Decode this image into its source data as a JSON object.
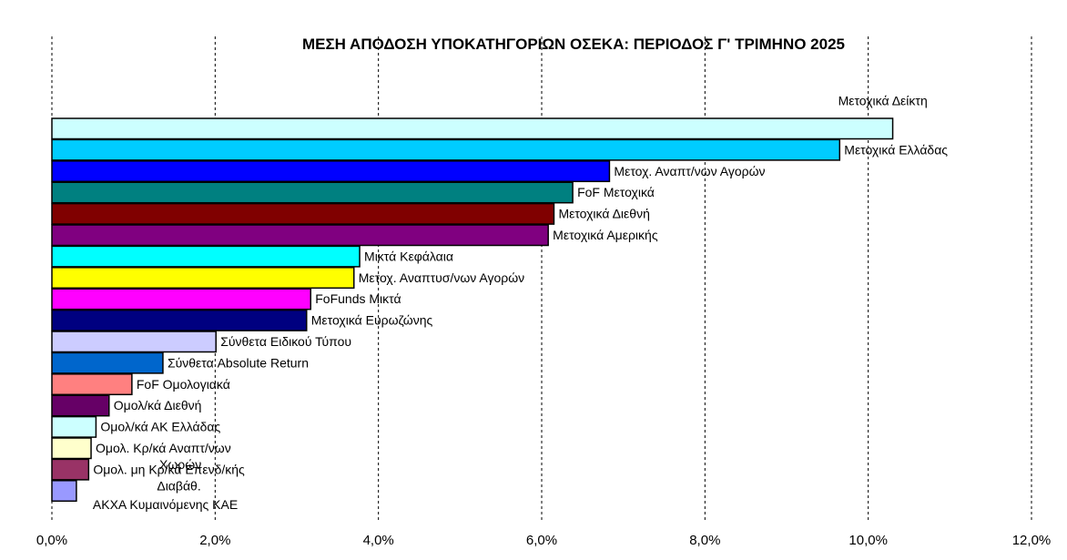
{
  "chart_data": {
    "type": "bar",
    "orientation": "horizontal",
    "title": "ΜΕΣΗ ΑΠΟΔΟΣΗ ΥΠΟΚΑΤΗΓΟΡΙΩΝ ΟΣΕΚΑ: ΠΕΡΙΟΔΟΣ Γ' ΤΡΙΜΗΝΟ 2025",
    "xlim": [
      0,
      12
    ],
    "x_ticks": [
      "0,0%",
      "2,0%",
      "4,0%",
      "6,0%",
      "8,0%",
      "10,0%",
      "12,0%"
    ],
    "grid": "vertical dashed",
    "categories": [
      {
        "label": "Μετοχικά Δείκτη",
        "value": 10.3,
        "color": "#ccffff"
      },
      {
        "label": "Μετοχικά Ελλάδας",
        "value": 9.65,
        "color": "#00ccff"
      },
      {
        "label": "Μετοχ. Αναπτ/νων Αγορών",
        "value": 6.83,
        "color": "#0000ff"
      },
      {
        "label": "FoF Μετοχικά",
        "value": 6.38,
        "color": "#008080"
      },
      {
        "label": "Μετοχικά Διεθνή",
        "value": 6.15,
        "color": "#800000"
      },
      {
        "label": "Μετοχικά Αμερικής",
        "value": 6.08,
        "color": "#800080"
      },
      {
        "label": "Μικτά Κεφάλαια",
        "value": 3.77,
        "color": "#00ffff"
      },
      {
        "label": "Μετοχ. Αναπτυσ/νων Αγορών",
        "value": 3.7,
        "color": "#ffff00"
      },
      {
        "label": "FoFunds Μικτά",
        "value": 3.17,
        "color": "#ff00ff"
      },
      {
        "label": "Μετοχικά Ευρωζώνης",
        "value": 3.12,
        "color": "#000080"
      },
      {
        "label": "Σύνθετα Ειδικού Τύπου",
        "value": 2.01,
        "color": "#ccccff"
      },
      {
        "label": "Σύνθετα Absolute Return",
        "value": 1.36,
        "color": "#0066cc"
      },
      {
        "label": "FoF Ομολογιακά",
        "value": 0.98,
        "color": "#ff8080"
      },
      {
        "label": "Ομολ/κά Διεθνή",
        "value": 0.7,
        "color": "#660066"
      },
      {
        "label": "Ομολ/κά ΑΚ Ελλάδας",
        "value": 0.54,
        "color": "#ccffff"
      },
      {
        "label": "Ομολ. Κρ/κά Αναπτ/νων Χωρών",
        "value": 0.48,
        "color": "#ffffcc"
      },
      {
        "label": "Ομολ. μη Κρ/κά Επενδ/κής Διαβάθ.",
        "value": 0.45,
        "color": "#993366"
      },
      {
        "label": "ΑΚΧΑ Κυμαινόμενης ΚΑΕ",
        "value": 0.3,
        "color": "#9999ff"
      }
    ]
  }
}
